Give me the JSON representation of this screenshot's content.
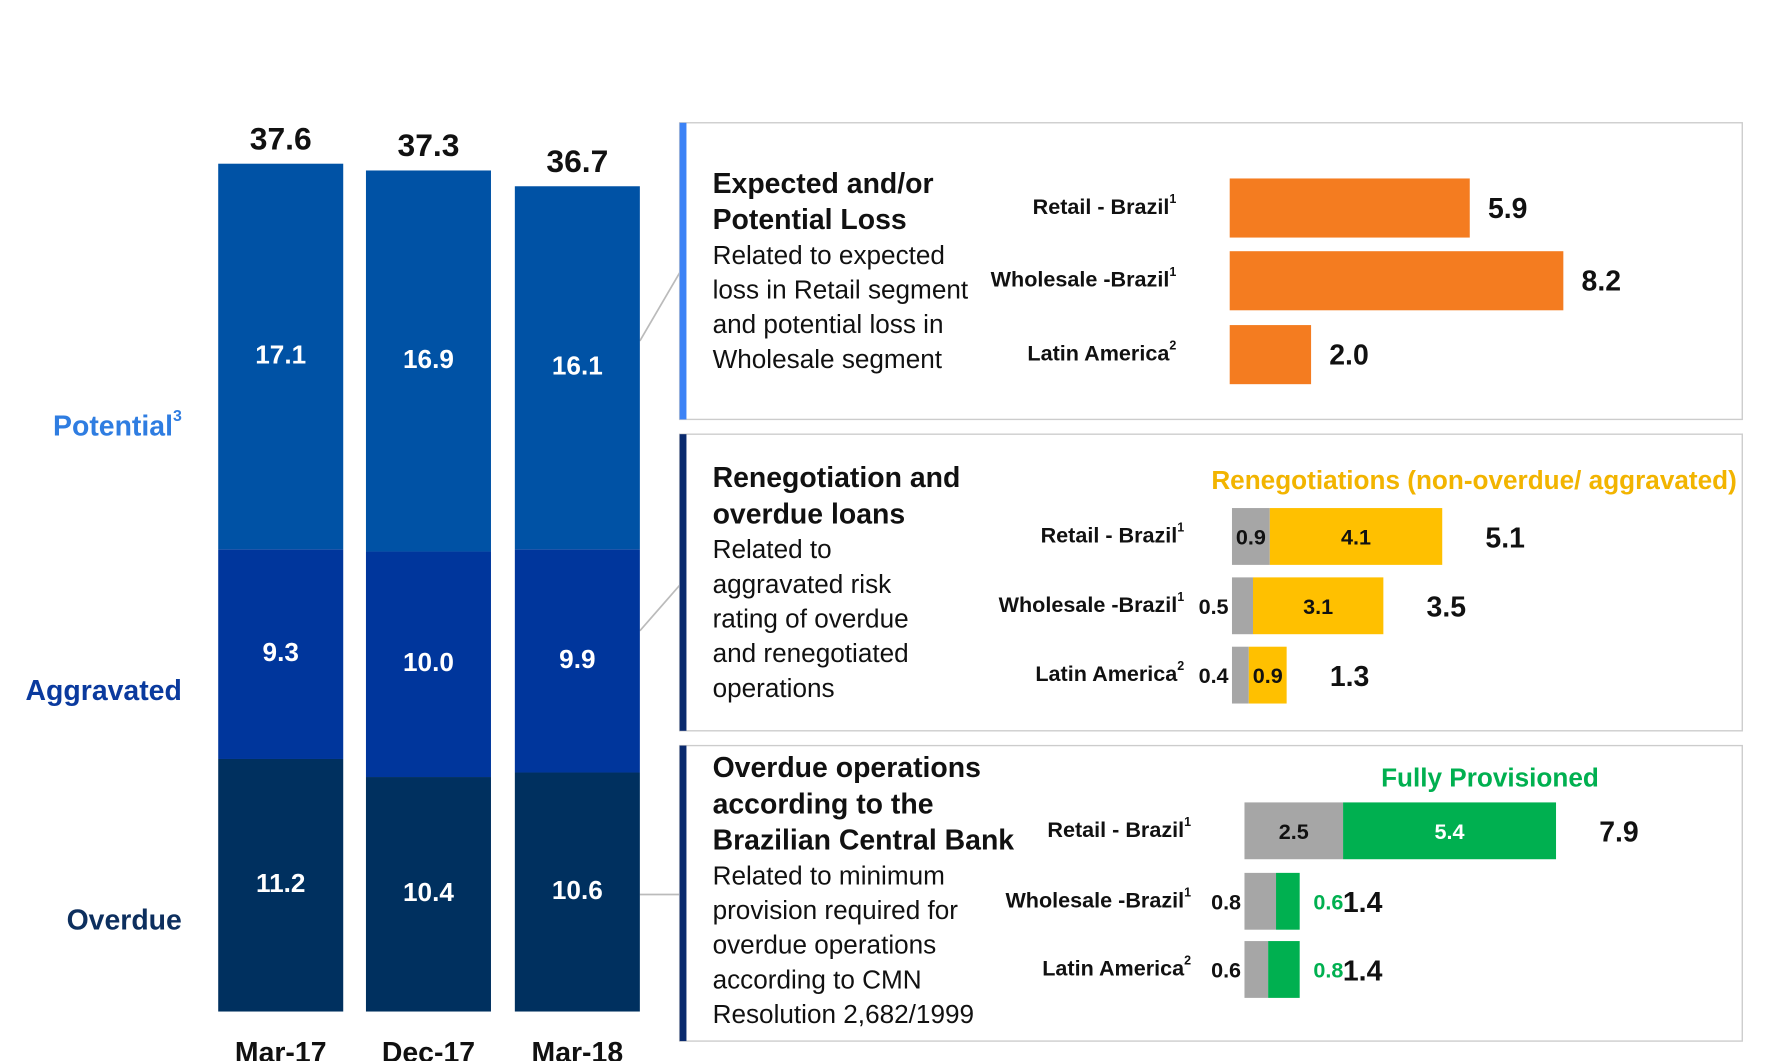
{
  "chart_data": [
    {
      "type": "stacked_bar",
      "categories": [
        "Mar-17",
        "Dec-17",
        "Mar-18"
      ],
      "totals": [
        37.6,
        37.3,
        36.7
      ],
      "series": [
        {
          "name": "Overdue",
          "color": "#00305f",
          "values": [
            11.2,
            10.4,
            10.6
          ]
        },
        {
          "name": "Aggravated",
          "color": "#00369c",
          "values": [
            9.3,
            10.0,
            9.9
          ],
          "value_labels": [
            "9.3",
            "10.0",
            "9.9"
          ]
        },
        {
          "name": "Potential",
          "note": "3",
          "color": "#0052a5",
          "values": [
            17.1,
            16.9,
            16.1
          ]
        }
      ]
    },
    {
      "type": "hbar",
      "title": [
        "Expected and/or",
        "Potential Loss"
      ],
      "description": [
        "Related to expected",
        "loss in Retail segment",
        "and potential loss in",
        "Wholesale segment"
      ],
      "categories": [
        "Retail - Brazil",
        "Wholesale -Brazil",
        "Latin America"
      ],
      "category_notes": [
        "1",
        "1",
        "2"
      ],
      "color": "#f47c20",
      "values": [
        5.9,
        8.2,
        2.0
      ],
      "value_labels": [
        "5.9",
        "8.2",
        "2.0"
      ]
    },
    {
      "type": "stacked_hbar",
      "title": [
        "Renegotiation and",
        "overdue loans"
      ],
      "description": [
        "Related to",
        "aggravated risk",
        "rating of overdue",
        "and renegotiated",
        "operations"
      ],
      "categories": [
        "Retail - Brazil",
        "Wholesale -Brazil",
        "Latin America"
      ],
      "category_notes": [
        "1",
        "1",
        "2"
      ],
      "series": [
        {
          "color": "#a6a6a6",
          "values": [
            0.9,
            0.5,
            0.4
          ]
        },
        {
          "name": "Renegotiations (non-overdue/ aggravated)",
          "color": "#ffc000",
          "values": [
            4.1,
            3.1,
            0.9
          ]
        }
      ],
      "totals": [
        5.1,
        3.5,
        1.3
      ]
    },
    {
      "type": "stacked_hbar",
      "title": [
        "Overdue operations",
        "according to the",
        "Brazilian Central Bank"
      ],
      "description": [
        "Related to minimum",
        "provision required  for",
        "overdue operations",
        "according to CMN",
        "Resolution 2,682/1999"
      ],
      "categories": [
        "Retail - Brazil",
        "Wholesale -Brazil",
        "Latin America"
      ],
      "category_notes": [
        "1",
        "1",
        "2"
      ],
      "series": [
        {
          "color": "#a6a6a6",
          "values": [
            2.5,
            0.8,
            0.6
          ]
        },
        {
          "name": "Fully Provisioned",
          "color": "#00b050",
          "values": [
            5.4,
            0.6,
            0.8
          ]
        }
      ],
      "totals": [
        7.9,
        1.4,
        1.4
      ]
    }
  ]
}
